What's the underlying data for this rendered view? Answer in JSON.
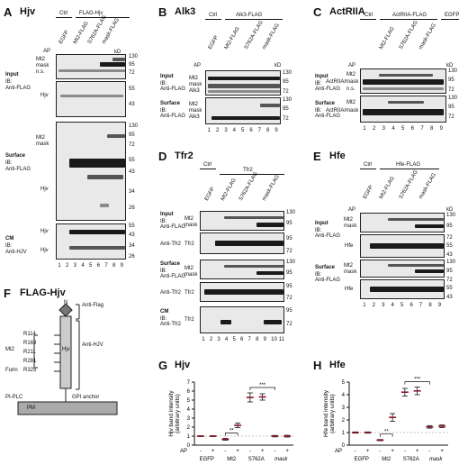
{
  "panels": {
    "A": {
      "letter": "A",
      "title": "Hjv",
      "ctrl": "Ctrl",
      "group": "FLAG-Hjv",
      "lanes": [
        "EGFP",
        "Mt2-FLAG",
        "S762A-FLAG",
        "mask-FLAG"
      ],
      "ap": [
        "-",
        "+",
        "-",
        "+",
        "-",
        "+",
        "-",
        "+"
      ],
      "sections": {
        "input": "Input",
        "surface": "Surface",
        "cm": "CM"
      },
      "ib_flag": "IB:\nAnti-FLAG",
      "ib_hjv": "IB:\nAnti-HJV",
      "labels": {
        "mt2": "Mt2",
        "mask": "mask",
        "ns": "n.s.",
        "hjv": "Hjv"
      },
      "kd": [
        "130",
        "95",
        "72",
        "55",
        "43",
        "72",
        "55",
        "43",
        "34",
        "26",
        "55",
        "43",
        "34",
        "26"
      ],
      "lane_numbers": [
        "1",
        "2",
        "3",
        "4",
        "5",
        "6",
        "7",
        "8",
        "9"
      ]
    },
    "B": {
      "letter": "B",
      "title": "Alk3",
      "ctrl": "Ctrl",
      "group": "Alk3-FLAG",
      "lanes": [
        "EGFP",
        "Mt2-FLAG",
        "S762A-FLAG",
        "mask-FLAG"
      ],
      "sections": {
        "input": "Input",
        "surface": "Surface"
      },
      "labels": {
        "mt2": "Mt2",
        "mask": "mask",
        "alk3": "Alk3"
      },
      "kd": [
        "130",
        "95",
        "72",
        "130",
        "95",
        "72"
      ],
      "lane_numbers": [
        "1",
        "2",
        "3",
        "4",
        "5",
        "6",
        "7",
        "8",
        "9"
      ]
    },
    "C": {
      "letter": "C",
      "title": "ActRIIA",
      "ctrl": "Ctrl",
      "group": "ActRIIA-FLAG",
      "egfp": "EGFP",
      "lanes": [
        "Mt2-FLAG",
        "S762A-FLAG",
        "mask-FLAG"
      ],
      "sections": {
        "input": "Input",
        "surface": "Surface"
      },
      "labels": {
        "mt2": "Mt2",
        "actr": "ActRIIA/mask",
        "ns": "n.s."
      },
      "kd": [
        "130",
        "95",
        "72",
        "130",
        "95",
        "72"
      ],
      "lane_numbers": [
        "1",
        "2",
        "3",
        "4",
        "5",
        "6",
        "7",
        "8",
        "9"
      ]
    },
    "D": {
      "letter": "D",
      "title": "Tfr2",
      "ctrl": "Ctrl",
      "group": "Tfr2",
      "lanes": [
        "EGFP",
        "Mt2-FLAG",
        "S762A-FLAG",
        "mask-FLAG"
      ],
      "ap": [
        "-",
        "-",
        "A",
        "-",
        "A",
        "F",
        "-",
        "A",
        "F"
      ],
      "sections": {
        "input": "Input",
        "surface": "Surface",
        "cm": "CM"
      },
      "ib_flag": "IB:\nAnti-FLAG",
      "ib_tfr2": "Anti-Tfr2",
      "labels": {
        "mt2": "Mt2",
        "mask": "mask",
        "tfr2": "Tfr2"
      },
      "kd": [
        "130",
        "95",
        "95",
        "72",
        "130",
        "95",
        "95",
        "72",
        "95",
        "72"
      ],
      "lane_numbers": [
        "1",
        "2",
        "3",
        "4",
        "5",
        "6",
        "7",
        "8",
        "9",
        "10",
        "11"
      ]
    },
    "E": {
      "letter": "E",
      "title": "Hfe",
      "ctrl": "Ctrl",
      "group": "Hfe-FLAG",
      "lanes": [
        "EGFP",
        "Mt2-FLAG",
        "S762A-FLAG",
        "mask-FLAG"
      ],
      "sections": {
        "input": "Input",
        "surface": "Surface"
      },
      "labels": {
        "mt2": "Mt2",
        "mask": "mask",
        "hfe": "Hfe"
      },
      "kd": [
        "130",
        "95",
        "72",
        "55",
        "43",
        "130",
        "95",
        "72",
        "55",
        "43"
      ],
      "lane_numbers": [
        "1",
        "2",
        "3",
        "4",
        "5",
        "6",
        "7",
        "8",
        "9"
      ]
    },
    "F": {
      "letter": "F",
      "title": "FLAG-Hjv",
      "labels": {
        "n": "N",
        "antiflag": "Anti-Flag",
        "antihjv": "Anti-HJV",
        "mt2": "Mt2",
        "furin": "Furin",
        "piplc": "PI-PLC",
        "gpi": "GPI anchor",
        "pm": "PM",
        "hjv": "Hjv"
      },
      "sites": [
        "R114",
        "R169",
        "R211",
        "R281",
        "R325"
      ]
    },
    "G": {
      "letter": "G",
      "title": "Hjv"
    },
    "H": {
      "letter": "H",
      "title": "Hfe"
    }
  },
  "chart_data": [
    {
      "type": "scatter",
      "title": "Hjv",
      "ylabel": "Hjv band intensity\n(arbitrary units)",
      "ylim": [
        0,
        7
      ],
      "yticks": [
        "0",
        "1",
        "2",
        "3",
        "4",
        "5",
        "6",
        "7"
      ],
      "categories": [
        "-",
        "+",
        "-",
        "+",
        "-",
        "+",
        "-",
        "+"
      ],
      "groups": [
        "EGFP",
        "Mt2",
        "S762A",
        "mask"
      ],
      "xlabel": "AP",
      "values": [
        1.0,
        1.0,
        0.65,
        2.2,
        5.3,
        5.35,
        1.0,
        1.0
      ],
      "errors": [
        0.05,
        0.05,
        0.1,
        0.25,
        0.5,
        0.35,
        0.08,
        0.1
      ],
      "significance": [
        {
          "label": "**",
          "from": 2,
          "to": 3
        },
        {
          "label": "***",
          "from": 4,
          "to": 6
        }
      ]
    },
    {
      "type": "scatter",
      "title": "Hfe",
      "ylabel": "Hfe band intensity\n(arbitrary units)",
      "ylim": [
        0,
        5
      ],
      "yticks": [
        "0",
        "1",
        "2",
        "3",
        "4",
        "5"
      ],
      "categories": [
        "-",
        "+",
        "-",
        "+",
        "-",
        "+",
        "-",
        "+"
      ],
      "groups": [
        "EGFP",
        "Mt2",
        "S762A",
        "mask"
      ],
      "xlabel": "AP",
      "values": [
        1.0,
        1.0,
        0.4,
        2.2,
        4.2,
        4.3,
        1.45,
        1.5
      ],
      "errors": [
        0.05,
        0.05,
        0.05,
        0.3,
        0.3,
        0.3,
        0.1,
        0.1
      ],
      "significance": [
        {
          "label": "**",
          "from": 2,
          "to": 3
        },
        {
          "label": "***",
          "from": 4,
          "to": 6
        }
      ]
    }
  ],
  "colors": {
    "marker": "#8b1a2a",
    "error": "#111",
    "axis": "#111"
  }
}
